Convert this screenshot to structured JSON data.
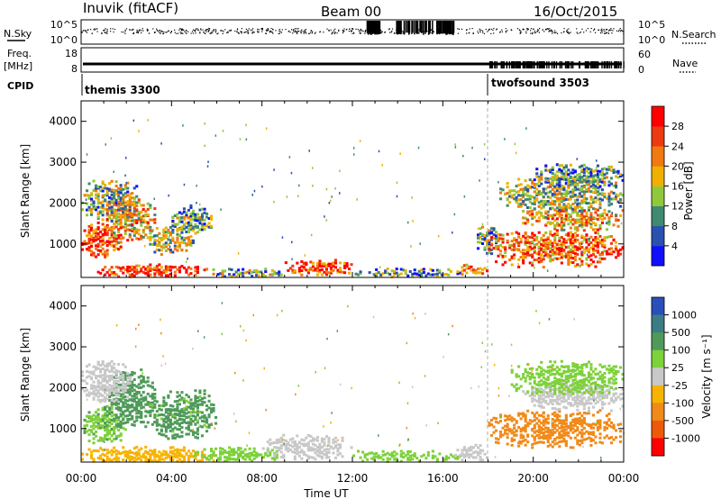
{
  "header": {
    "station": "Inuvik (fitACF)",
    "beam": "Beam 00",
    "date": "16/Oct/2015"
  },
  "strips": {
    "nsky_label": "N.Sky",
    "nsearch_label": "N.Search",
    "nsky_ticks": [
      "10^5",
      "10^0"
    ],
    "nsearch_ticks": [
      "10^5",
      "10^0"
    ],
    "freq_label": "Freq.",
    "freq_unit": "[MHz]",
    "freq_ticks": [
      "18",
      "8"
    ],
    "nave_label": "Nave",
    "nave_ticks": [
      "60",
      "0"
    ],
    "cpid_label": "CPID",
    "cpid_modes": [
      "themis 3300",
      "twofsound 3503"
    ]
  },
  "x_ticks": [
    "00:00",
    "04:00",
    "08:00",
    "12:00",
    "16:00",
    "20:00",
    "00:00"
  ],
  "x_label": "Time UT",
  "y_ticks": [
    "1000",
    "2000",
    "3000",
    "4000"
  ],
  "y_label": "Slant Range [km]",
  "power_scale": {
    "label": "Power [dB]",
    "ticks": [
      "4",
      "8",
      "12",
      "16",
      "20",
      "24",
      "28"
    ],
    "colors": [
      "#1010ff",
      "#2a50b0",
      "#3f8a70",
      "#8fc93a",
      "#f0b000",
      "#f07a10",
      "#ee3a10",
      "#ff0000"
    ]
  },
  "velocity_scale": {
    "label": "Velocity [m s⁻¹]",
    "ticks": [
      "1000",
      "500",
      "100",
      "25",
      "-25",
      "-100",
      "-500",
      "-1000"
    ],
    "colors": [
      "#2a4fb8",
      "#3c7c86",
      "#4f9a5a",
      "#7dd13a",
      "#c8c8c8",
      "#f7b300",
      "#f08a1a",
      "#ef5a0a",
      "#ff0000"
    ]
  },
  "chart_data": [
    {
      "type": "heatmap",
      "title": "Power [dB]",
      "xlabel": "Time UT",
      "ylabel": "Slant Range [km]",
      "xlim": [
        0,
        24
      ],
      "ylim": [
        180,
        4500
      ],
      "color_ticks": [
        4,
        8,
        12,
        16,
        20,
        24,
        28
      ],
      "blobs": [
        {
          "t": [
            0.0,
            1.8
          ],
          "r": [
            700,
            1600
          ],
          "value": 27
        },
        {
          "t": [
            1.0,
            3.3
          ],
          "r": [
            1100,
            2200
          ],
          "value": 20
        },
        {
          "t": [
            3.0,
            5.0
          ],
          "r": [
            800,
            1500
          ],
          "value": 14
        },
        {
          "t": [
            0.0,
            2.5
          ],
          "r": [
            1600,
            2600
          ],
          "value": 13
        },
        {
          "t": [
            4.0,
            5.8
          ],
          "r": [
            1300,
            2000
          ],
          "value": 11
        },
        {
          "t": [
            0.5,
            5.5
          ],
          "r": [
            250,
            550
          ],
          "value": 28
        },
        {
          "t": [
            5.5,
            9.0
          ],
          "r": [
            250,
            450
          ],
          "value": 12
        },
        {
          "t": [
            9.0,
            12.0
          ],
          "r": [
            300,
            700
          ],
          "value": 26
        },
        {
          "t": [
            12.0,
            17.0
          ],
          "r": [
            250,
            450
          ],
          "value": 10
        },
        {
          "t": [
            16.5,
            18.0
          ],
          "r": [
            300,
            550
          ],
          "value": 22
        },
        {
          "t": [
            17.5,
            18.5
          ],
          "r": [
            800,
            1500
          ],
          "value": 12
        },
        {
          "t": [
            18.0,
            24.0
          ],
          "r": [
            500,
            1400
          ],
          "value": 24
        },
        {
          "t": [
            19.5,
            24.0
          ],
          "r": [
            1400,
            2000
          ],
          "value": 20
        },
        {
          "t": [
            18.5,
            24.0
          ],
          "r": [
            1800,
            2700
          ],
          "value": 14
        },
        {
          "t": [
            20.0,
            24.0
          ],
          "r": [
            2400,
            3000
          ],
          "value": 11
        }
      ]
    },
    {
      "type": "heatmap",
      "title": "Velocity [m s⁻¹]",
      "xlabel": "Time UT",
      "ylabel": "Slant Range [km]",
      "xlim": [
        0,
        24
      ],
      "ylim": [
        180,
        4500
      ],
      "color_ticks": [
        1000,
        500,
        100,
        25,
        -25,
        -100,
        -500,
        -1000
      ],
      "blobs": [
        {
          "t": [
            0.0,
            2.0
          ],
          "r": [
            700,
            1600
          ],
          "value": 80
        },
        {
          "t": [
            1.0,
            3.3
          ],
          "r": [
            1100,
            2500
          ],
          "value": 200
        },
        {
          "t": [
            3.0,
            6.0
          ],
          "r": [
            800,
            2000
          ],
          "value": 150
        },
        {
          "t": [
            0.0,
            2.2
          ],
          "r": [
            1700,
            2700
          ],
          "value": 0
        },
        {
          "t": [
            0.0,
            6.0
          ],
          "r": [
            200,
            600
          ],
          "value": -60
        },
        {
          "t": [
            5.0,
            9.0
          ],
          "r": [
            250,
            600
          ],
          "value": 60
        },
        {
          "t": [
            8.0,
            12.0
          ],
          "r": [
            300,
            900
          ],
          "value": 10
        },
        {
          "t": [
            12.0,
            17.0
          ],
          "r": [
            250,
            500
          ],
          "value": 50
        },
        {
          "t": [
            16.5,
            18.0
          ],
          "r": [
            300,
            650
          ],
          "value": 15
        },
        {
          "t": [
            18.0,
            24.0
          ],
          "r": [
            600,
            1500
          ],
          "value": -300
        },
        {
          "t": [
            19.5,
            24.0
          ],
          "r": [
            1500,
            2200
          ],
          "value": 0
        },
        {
          "t": [
            19.0,
            24.0
          ],
          "r": [
            1900,
            2700
          ],
          "value": 40
        }
      ]
    }
  ]
}
